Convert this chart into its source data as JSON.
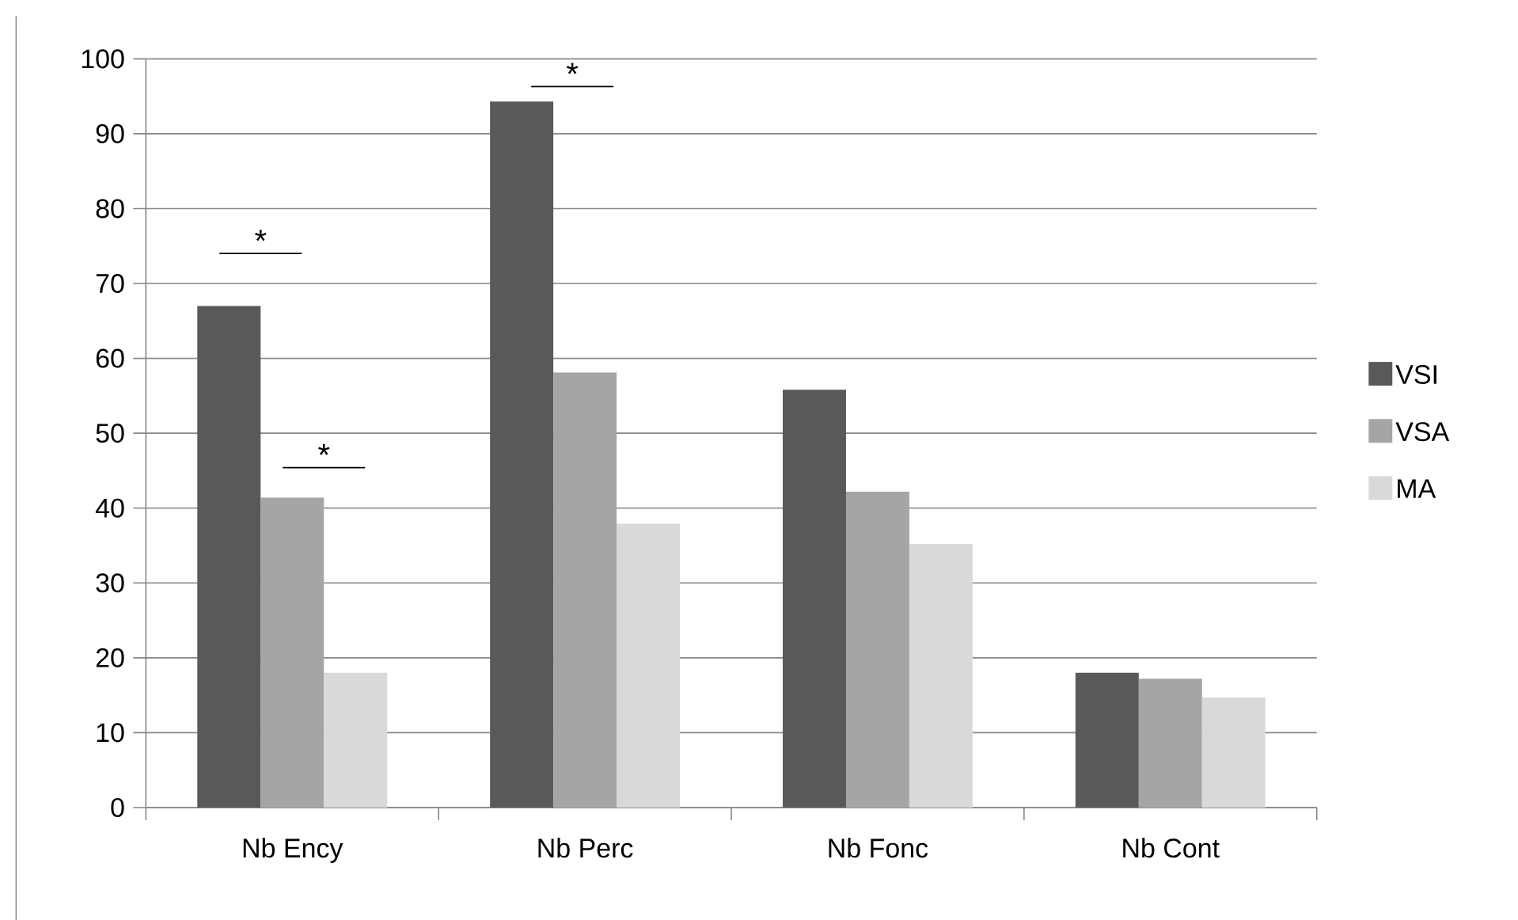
{
  "chart_data": {
    "type": "bar",
    "categories": [
      "Nb Ency",
      "Nb Perc",
      "Nb Fonc",
      "Nb Cont"
    ],
    "series": [
      {
        "name": "VSI",
        "color": "#595959",
        "values": [
          67,
          94.3,
          55.8,
          18
        ]
      },
      {
        "name": "VSA",
        "color": "#a5a5a5",
        "values": [
          41.4,
          58.1,
          42.2,
          17.2
        ]
      },
      {
        "name": "MA",
        "color": "#d9d9d9",
        "values": [
          18,
          37.9,
          35.2,
          14.7
        ]
      }
    ],
    "ylim": [
      0,
      100
    ],
    "yticks": [
      0,
      10,
      20,
      30,
      40,
      50,
      60,
      70,
      80,
      90,
      100
    ],
    "grid": "y",
    "legend": "right",
    "annotations": [
      "*",
      "*",
      "*"
    ]
  }
}
